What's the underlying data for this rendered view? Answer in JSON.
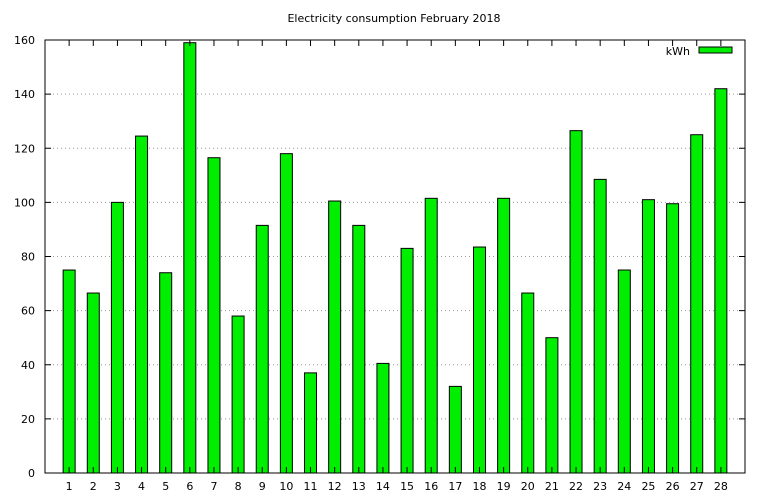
{
  "chart_data": {
    "type": "bar",
    "title": "Electricity consumption February 2018",
    "xlabel": "",
    "ylabel": "",
    "categories": [
      "1",
      "2",
      "3",
      "4",
      "5",
      "6",
      "7",
      "8",
      "9",
      "10",
      "11",
      "12",
      "13",
      "14",
      "15",
      "16",
      "17",
      "18",
      "19",
      "20",
      "21",
      "22",
      "23",
      "24",
      "25",
      "26",
      "27",
      "28"
    ],
    "series": [
      {
        "name": "kWh",
        "color": "#00ee00",
        "values": [
          75,
          66.5,
          100,
          124.5,
          74,
          159,
          116.5,
          58,
          91.5,
          118,
          37,
          100.5,
          91.5,
          40.5,
          83,
          101.5,
          32,
          83.5,
          101.5,
          66.5,
          50,
          126.5,
          108.5,
          75,
          101,
          99.5,
          125,
          142
        ]
      }
    ],
    "ylim": [
      0,
      160
    ],
    "yticks": [
      0,
      20,
      40,
      60,
      80,
      100,
      120,
      140,
      160
    ],
    "grid": true,
    "legend_position": "top-right"
  }
}
